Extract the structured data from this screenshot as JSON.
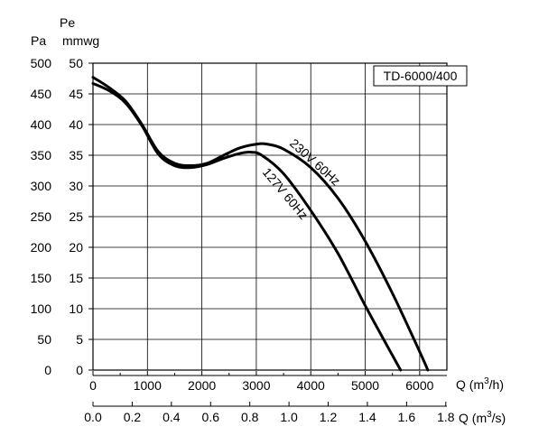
{
  "chart_data": {
    "type": "line",
    "title": "TD-6000/400",
    "left_axis_unit_pa": "Pa",
    "left_axis_unit_pe": "Pe",
    "left_axis_unit_mmwg": "mmwg",
    "pa_ticks": [
      "0",
      "50",
      "100",
      "150",
      "200",
      "250",
      "300",
      "350",
      "400",
      "450",
      "500"
    ],
    "mmwg_ticks": [
      "0",
      "5",
      "10",
      "15",
      "20",
      "25",
      "30",
      "35",
      "40",
      "45",
      "50"
    ],
    "x_ticks_m3h": [
      "0",
      "1000",
      "2000",
      "3000",
      "4000",
      "5000",
      "6000"
    ],
    "x_ticks_m3s": [
      "0.0",
      "0.2",
      "0.4",
      "0.6",
      "0.8",
      "1.0",
      "1.2",
      "1.4",
      "1.6",
      "1.8"
    ],
    "xlabel_m3h": "Q (m³/h)",
    "xlabel_m3s": "Q (m³/s)",
    "xlim_m3h": [
      0,
      6500
    ],
    "xlim_m3s": [
      0,
      1.8055
    ],
    "ylim_pa": [
      0,
      500
    ],
    "grid": true,
    "series": [
      {
        "name": "230V 60Hz",
        "x": [
          0,
          300,
          600,
          900,
          1200,
          1500,
          1800,
          2100,
          2400,
          2700,
          3000,
          3200,
          3500,
          4000,
          4500,
          5000,
          5500,
          6000,
          6150
        ],
        "y": [
          477,
          460,
          438,
          400,
          356,
          337,
          333,
          337,
          350,
          362,
          368,
          368,
          360,
          330,
          280,
          210,
          125,
          30,
          0
        ]
      },
      {
        "name": "127V 60Hz",
        "x": [
          0,
          300,
          600,
          900,
          1200,
          1500,
          1800,
          2100,
          2400,
          2700,
          2900,
          3100,
          3500,
          4000,
          4500,
          5000,
          5400,
          5650
        ],
        "y": [
          467,
          455,
          435,
          398,
          352,
          333,
          330,
          335,
          345,
          353,
          355,
          350,
          320,
          260,
          190,
          105,
          40,
          0
        ]
      }
    ]
  }
}
